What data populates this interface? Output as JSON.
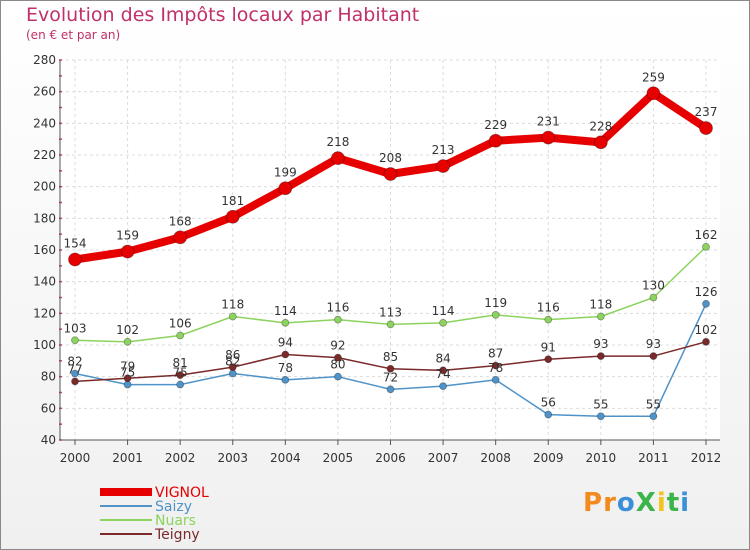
{
  "header": {
    "title": "Evolution des Impôts locaux par Habitant",
    "subtitle": "(en € et par an)"
  },
  "logo": {
    "letters": [
      "P",
      "r",
      "o",
      "X",
      "i",
      "t",
      "i"
    ],
    "colors": [
      "#f28a1e",
      "#f28a1e",
      "#3b8fd9",
      "#3bb54a",
      "#f2c41e",
      "#3bb54a",
      "#3b8fd9"
    ]
  },
  "chart_data": {
    "type": "line",
    "title": "Evolution des Impôts locaux par Habitant",
    "subtitle": "(en € et par an)",
    "xlabel": "",
    "ylabel": "",
    "ylim": [
      40,
      280
    ],
    "yticks": [
      40,
      60,
      80,
      100,
      120,
      140,
      160,
      180,
      200,
      220,
      240,
      260,
      280
    ],
    "grid": true,
    "legend_position": "bottom-left",
    "categories": [
      "2000",
      "2001",
      "2002",
      "2003",
      "2004",
      "2005",
      "2006",
      "2007",
      "2008",
      "2009",
      "2010",
      "2011",
      "2012"
    ],
    "series": [
      {
        "name": "VIGNOL",
        "color": "#e60000",
        "values": [
          154,
          159,
          168,
          181,
          199,
          218,
          208,
          213,
          229,
          231,
          228,
          259,
          237
        ]
      },
      {
        "name": "Saizy",
        "color": "#4f93c8",
        "values": [
          82,
          75,
          75,
          82,
          78,
          80,
          72,
          74,
          78,
          56,
          55,
          55,
          126
        ]
      },
      {
        "name": "Nuars",
        "color": "#8dd35f",
        "values": [
          103,
          102,
          106,
          118,
          114,
          116,
          113,
          114,
          119,
          116,
          118,
          130,
          162
        ]
      },
      {
        "name": "Teigny",
        "color": "#7a2a2a",
        "values": [
          77,
          79,
          81,
          86,
          94,
          92,
          85,
          84,
          87,
          91,
          93,
          93,
          102
        ]
      }
    ]
  }
}
